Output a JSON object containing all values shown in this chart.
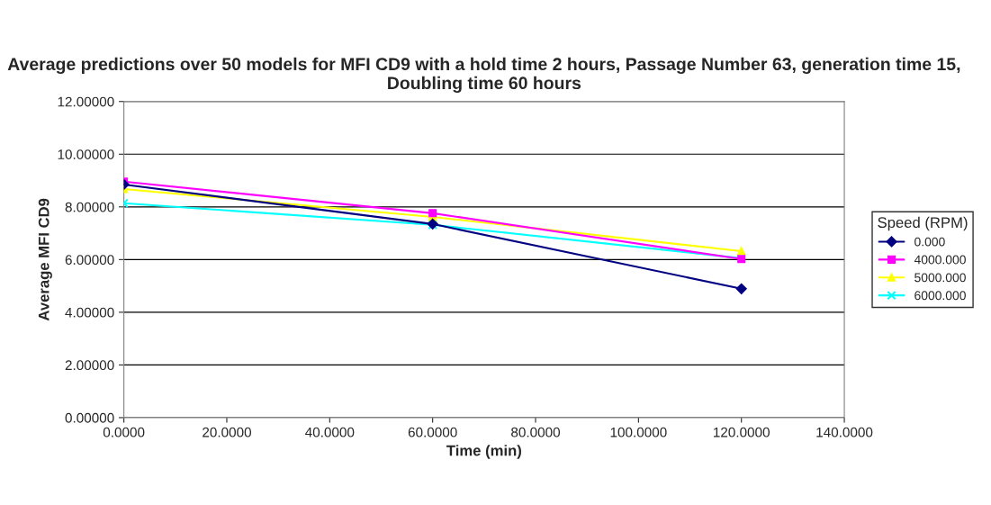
{
  "chart_data": {
    "type": "line",
    "title": "Average predictions over 50 models for MFI CD9 with a hold time 2 hours, Passage Number 63, generation time 15, Doubling time 60 hours",
    "xlabel": "Time (min)",
    "ylabel": "Average MFI CD9",
    "legend_title": "Speed (RPM)",
    "x": [
      0,
      60,
      120
    ],
    "series": [
      {
        "name": "0.000",
        "color": "#000080",
        "marker": "diamond",
        "values": [
          8.85,
          7.35,
          4.89
        ]
      },
      {
        "name": "4000.000",
        "color": "#ff00ff",
        "marker": "square",
        "values": [
          8.96,
          7.76,
          6.02
        ]
      },
      {
        "name": "5000.000",
        "color": "#ffff00",
        "marker": "triangle",
        "values": [
          8.68,
          7.62,
          6.32
        ]
      },
      {
        "name": "6000.000",
        "color": "#00ffff",
        "marker": "cross",
        "values": [
          8.14,
          7.32,
          6.05
        ]
      }
    ],
    "xlim": [
      0,
      140
    ],
    "xticks": [
      {
        "value": 0,
        "label": "0.0000"
      },
      {
        "value": 20,
        "label": "20.0000"
      },
      {
        "value": 40,
        "label": "40.0000"
      },
      {
        "value": 60,
        "label": "60.0000"
      },
      {
        "value": 80,
        "label": "80.0000"
      },
      {
        "value": 100,
        "label": "100.0000"
      },
      {
        "value": 120,
        "label": "120.0000"
      },
      {
        "value": 140,
        "label": "140.0000"
      }
    ],
    "ylim": [
      0,
      12
    ],
    "yticks": [
      {
        "value": 0,
        "label": "0.00000"
      },
      {
        "value": 2,
        "label": "2.00000"
      },
      {
        "value": 4,
        "label": "4.00000"
      },
      {
        "value": 6,
        "label": "6.00000"
      },
      {
        "value": 8,
        "label": "8.00000"
      },
      {
        "value": 10,
        "label": "10.00000"
      },
      {
        "value": 12,
        "label": "12.00000"
      }
    ],
    "grid": "y",
    "legend": "right",
    "line_style": "solid"
  }
}
